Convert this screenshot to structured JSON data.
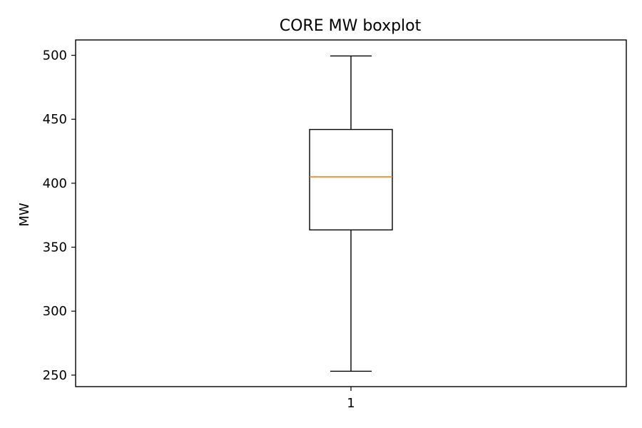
{
  "chart_data": {
    "type": "boxplot",
    "title": "CORE MW boxplot",
    "xlabel": "",
    "ylabel": "MW",
    "categories": [
      "1"
    ],
    "ylim": [
      241,
      512
    ],
    "yticks": [
      250,
      300,
      350,
      400,
      450,
      500
    ],
    "grid": false,
    "boxes": [
      {
        "category": "1",
        "whisker_low": 253,
        "q1": 363.5,
        "median": 405,
        "q3": 442,
        "whisker_high": 499.5
      }
    ],
    "colors": {
      "box": "#000000",
      "median": "#ff7f0e",
      "axes": "#000000"
    }
  }
}
